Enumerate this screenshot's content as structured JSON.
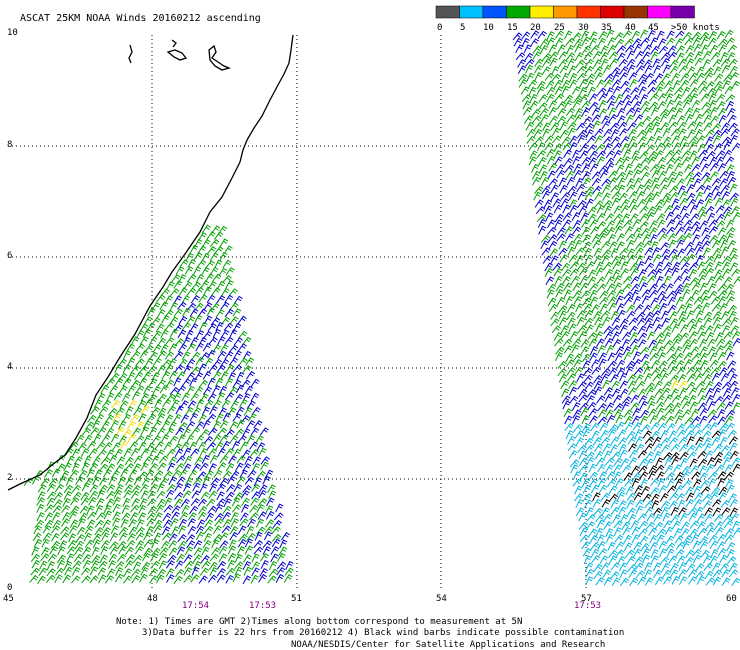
{
  "title": "ASCAT 25KM NOAA Winds 20160212 ascending",
  "legend": {
    "labels": [
      "0",
      "5",
      "10",
      "15",
      "20",
      "25",
      "30",
      "35",
      "40",
      "45",
      ">50 knots"
    ],
    "colors": [
      "#555555",
      "#00bfff",
      "#0055ff",
      "#00aa00",
      "#ffee00",
      "#ff9900",
      "#ff3300",
      "#dd0000",
      "#993300",
      "#ff00ff",
      "#7700aa"
    ]
  },
  "axes": {
    "x_ticks": [
      "45",
      "48",
      "51",
      "54",
      "57",
      "60"
    ],
    "y_ticks": [
      "0",
      "2",
      "4",
      "6",
      "8",
      "10"
    ]
  },
  "times": [
    "17:54",
    "17:53",
    "17:53"
  ],
  "notes": {
    "line1": "Note: 1) Times are GMT 2)Times along bottom correspond to measurement at 5N",
    "line2": "3)Data buffer is 22 hrs from 20160212 4) Black wind barbs indicate possible contamination",
    "line3": "NOAA/NESDIS/Center for Satellite Applications and Research"
  },
  "colors": {
    "green": "#00a000",
    "blue": "#0000cc",
    "cyan": "#00b4e0",
    "black": "#000000",
    "yellow": "#f0e000",
    "time_text": "#800080"
  },
  "icons": [
    "coastline-outline",
    "wind-barb"
  ]
}
